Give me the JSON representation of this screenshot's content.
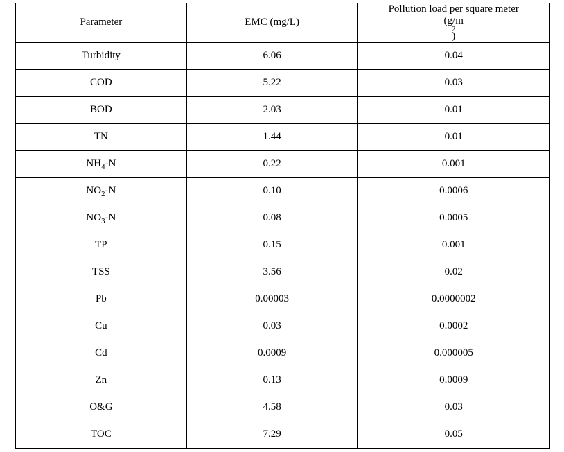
{
  "table": {
    "type": "table",
    "background_color": "#ffffff",
    "border_color": "#000000",
    "text_color": "#000000",
    "header_fontsize": 15,
    "cell_fontsize": 15,
    "columns": [
      {
        "label_html": "Parameter",
        "width_pct": 32,
        "align": "center"
      },
      {
        "label_html": "EMC (mg/L)",
        "width_pct": 32,
        "align": "center"
      },
      {
        "label_html": "Pollution load per square meter<br>(g/m<sup>2</sup>)",
        "width_pct": 36,
        "align": "center"
      }
    ],
    "rows": [
      {
        "param_html": "Turbidity",
        "emc": "6.06",
        "load": "0.04"
      },
      {
        "param_html": "COD",
        "emc": "5.22",
        "load": "0.03"
      },
      {
        "param_html": "BOD",
        "emc": "2.03",
        "load": "0.01"
      },
      {
        "param_html": "TN",
        "emc": "1.44",
        "load": "0.01"
      },
      {
        "param_html": "NH<sub>4</sub>-N",
        "emc": "0.22",
        "load": "0.001"
      },
      {
        "param_html": "NO<sub>2</sub>-N",
        "emc": "0.10",
        "load": "0.0006"
      },
      {
        "param_html": "NO<sub>3</sub>-N",
        "emc": "0.08",
        "load": "0.0005"
      },
      {
        "param_html": "TP",
        "emc": "0.15",
        "load": "0.001"
      },
      {
        "param_html": "TSS",
        "emc": "3.56",
        "load": "0.02"
      },
      {
        "param_html": "Pb",
        "emc": "0.00003",
        "load": "0.0000002"
      },
      {
        "param_html": "Cu",
        "emc": "0.03",
        "load": "0.0002"
      },
      {
        "param_html": "Cd",
        "emc": "0.0009",
        "load": "0.000005"
      },
      {
        "param_html": "Zn",
        "emc": "0.13",
        "load": "0.0009"
      },
      {
        "param_html": "O&amp;G",
        "emc": "4.58",
        "load": "0.03"
      },
      {
        "param_html": "TOC",
        "emc": "7.29",
        "load": "0.05"
      }
    ]
  }
}
